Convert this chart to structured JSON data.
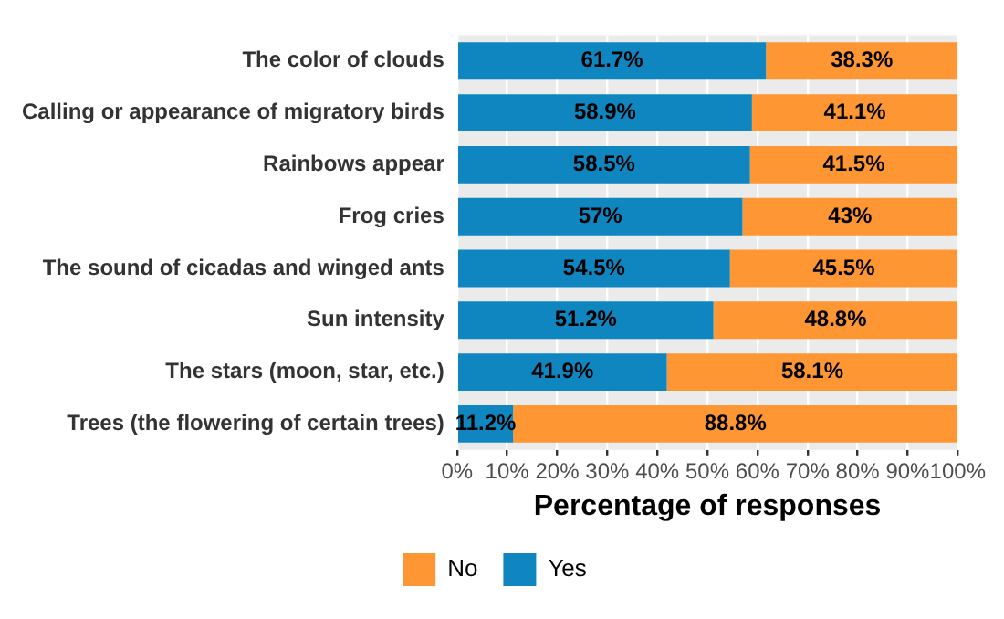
{
  "chart_data": {
    "type": "bar",
    "orientation": "horizontal",
    "stacked": true,
    "categories": [
      "The color of clouds",
      "Calling or appearance of migratory birds",
      "Rainbows appear",
      "Frog cries",
      "The sound of cicadas and winged ants",
      "Sun intensity",
      "The stars (moon, star, etc.)",
      "Trees (the flowering of certain trees)"
    ],
    "series": [
      {
        "name": "Yes",
        "color": "#0f86bf",
        "values": [
          61.7,
          58.9,
          58.5,
          57,
          54.5,
          51.2,
          41.9,
          11.2
        ],
        "value_labels": [
          "61.7%",
          "58.9%",
          "58.5%",
          "57%",
          "54.5%",
          "51.2%",
          "41.9%",
          "11.2%"
        ]
      },
      {
        "name": "No",
        "color": "#fe9733",
        "values": [
          38.3,
          41.1,
          41.5,
          43,
          45.5,
          48.8,
          58.1,
          88.8
        ],
        "value_labels": [
          "38.3%",
          "41.1%",
          "41.5%",
          "43%",
          "45.5%",
          "48.8%",
          "58.1%",
          "88.8%"
        ]
      }
    ],
    "xlabel": "Percentage of responses",
    "xlim": [
      0,
      100
    ],
    "xticks": [
      {
        "value": 0,
        "label": "0%"
      },
      {
        "value": 10,
        "label": "10%"
      },
      {
        "value": 20,
        "label": "20%"
      },
      {
        "value": 30,
        "label": "30%"
      },
      {
        "value": 40,
        "label": "40%"
      },
      {
        "value": 50,
        "label": "50%"
      },
      {
        "value": 60,
        "label": "60%"
      },
      {
        "value": 70,
        "label": "70%"
      },
      {
        "value": 80,
        "label": "80%"
      },
      {
        "value": 90,
        "label": "90%"
      },
      {
        "value": 100,
        "label": "100%"
      }
    ],
    "grid": "x",
    "legend": "bottom"
  }
}
